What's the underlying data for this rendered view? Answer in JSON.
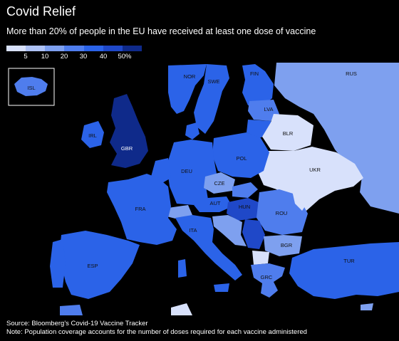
{
  "title": "Covid Relief",
  "subtitle": "More than 20% of people in the EU have received at least one dose of vaccine",
  "legend": {
    "colors": [
      "#d8e1fb",
      "#aec2f5",
      "#7ea0ef",
      "#4f7ded",
      "#2b63e8",
      "#1f48c8",
      "#0f2a8a"
    ],
    "ticks": [
      "5",
      "10",
      "20",
      "30",
      "40",
      "50%"
    ]
  },
  "countries": {
    "isl": "ISL",
    "nor": "NOR",
    "swe": "SWE",
    "fin": "FIN",
    "rus": "RUS",
    "lva": "LVA",
    "irl": "IRL",
    "gbr": "GBR",
    "blr": "BLR",
    "pol": "POL",
    "deu": "DEU",
    "cze": "CZE",
    "ukr": "UKR",
    "fra": "FRA",
    "aut": "AUT",
    "hun": "HUN",
    "rou": "ROU",
    "ita": "ITA",
    "bgr": "BGR",
    "esp": "ESP",
    "tur": "TUR",
    "grc": "GRC"
  },
  "footer": {
    "source": "Source: Bloomberg's Covid-19 Vaccine Tracker",
    "note": "Note: Population coverage accounts for the number of doses required for each vaccine administered"
  }
}
